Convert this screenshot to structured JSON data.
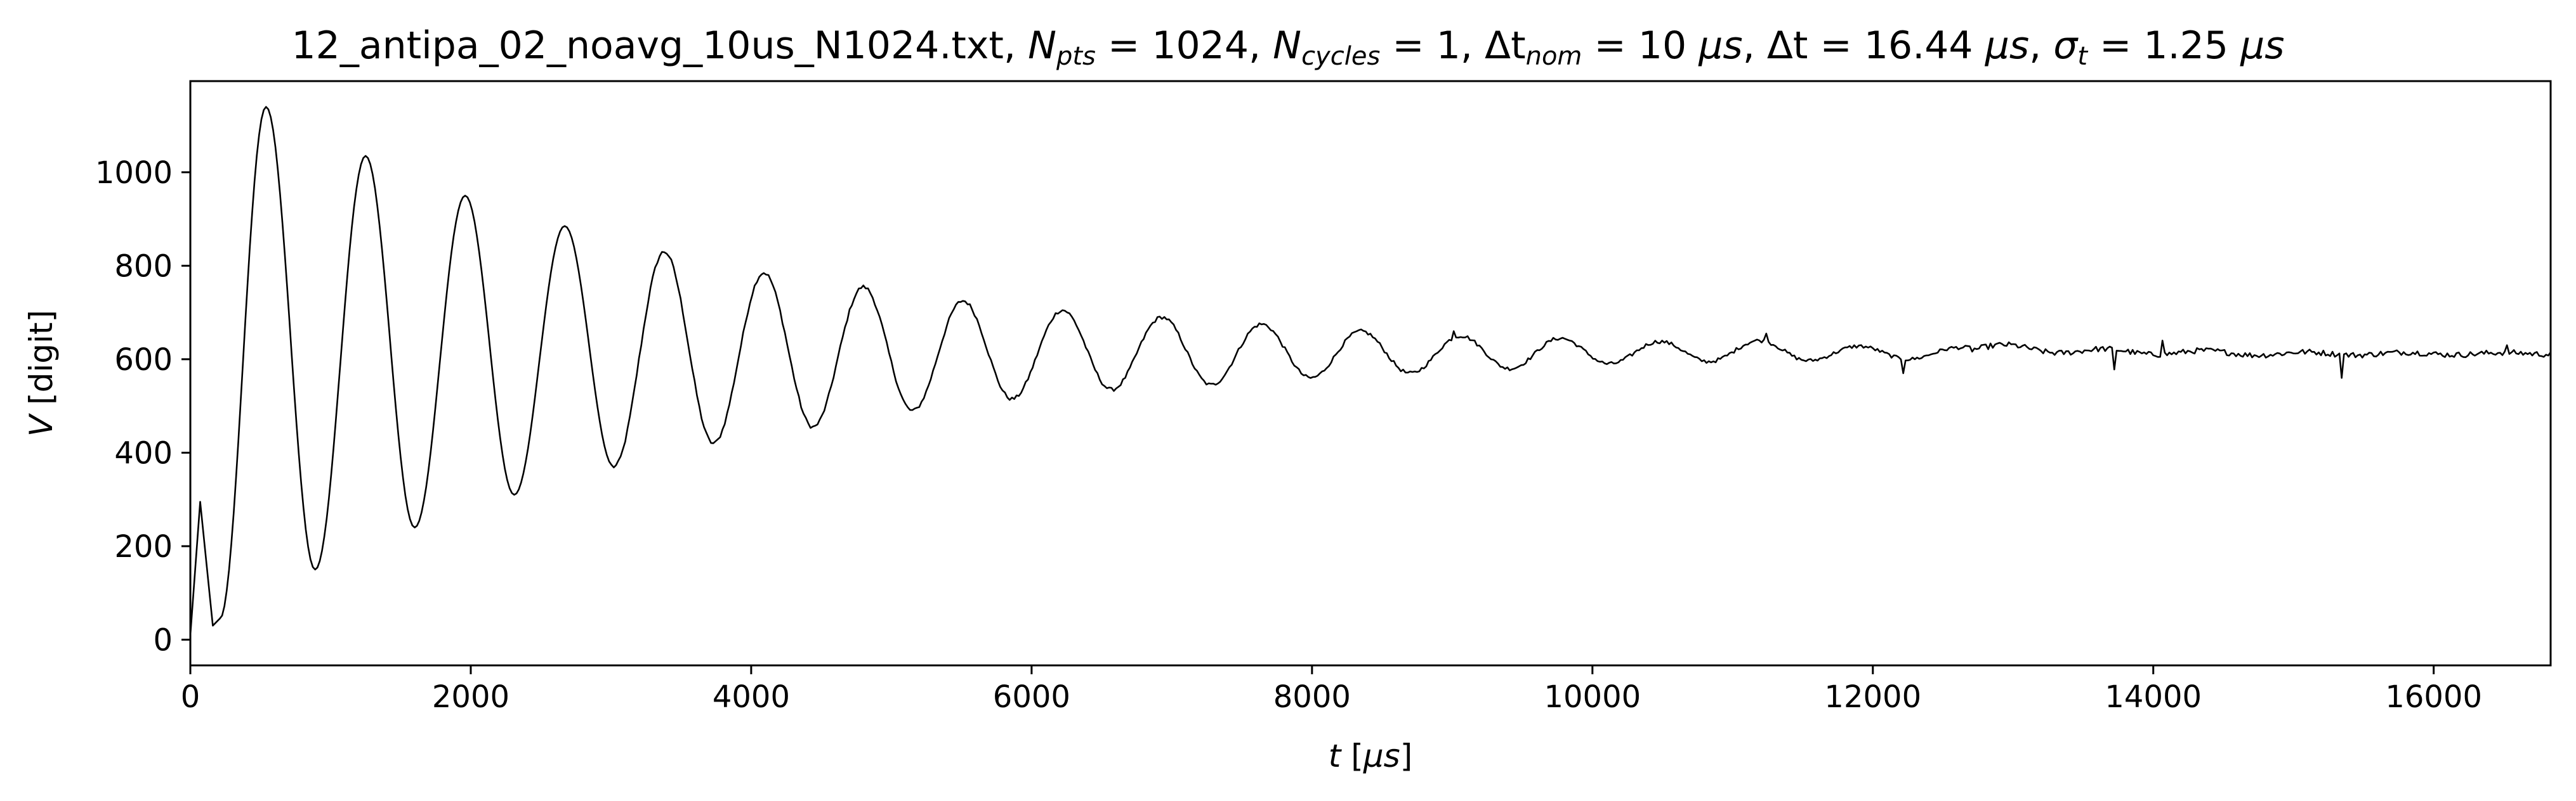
{
  "chart_data": {
    "type": "line",
    "title_parts": {
      "filename": "12_antipa_02_noavg_10us_N1024.txt, ",
      "npts_sym": "N",
      "npts_sub": "pts",
      "npts_val": " = 1024, ",
      "ncyc_sym": "N",
      "ncyc_sub": "cycles",
      "ncyc_val": " = 1, ",
      "dtnom_sym": "Δt",
      "dtnom_sub": "nom",
      "dtnom_val": " = 10 ",
      "dtnom_unit": "μs",
      "sep1": ", ",
      "dt_sym": "Δt",
      "dt_val": " = 16.44 ",
      "dt_unit": "μs",
      "sep2": ", ",
      "sig_sym": "σ",
      "sig_sub": "t",
      "sig_val": " = 1.25 ",
      "sig_unit": "μs"
    },
    "xlabel": {
      "var": "t",
      "unit_open": " [",
      "unit": "μs",
      "unit_close": "]"
    },
    "ylabel": {
      "var": "V",
      "unit": " [digit]"
    },
    "xlim": [
      0,
      16834
    ],
    "ylim": [
      -55,
      1195
    ],
    "xticks": [
      "0",
      "2000",
      "4000",
      "6000",
      "8000",
      "10000",
      "12000",
      "14000",
      "16000"
    ],
    "xtick_values": [
      0,
      2000,
      4000,
      6000,
      8000,
      10000,
      12000,
      14000,
      16000
    ],
    "yticks": [
      "0",
      "200",
      "400",
      "600",
      "800",
      "1000"
    ],
    "ytick_values": [
      0,
      200,
      400,
      600,
      800,
      1000
    ],
    "series": [
      {
        "line_color": "#000000",
        "sample_interval": 16.44,
        "n_points": 1024,
        "first_x": 0,
        "oscillation": {
          "baseline": 612,
          "period": 710,
          "first_peak_x": 540,
          "decay_time": 3500,
          "initial_transient": [
            {
              "x": 0,
              "y": 10
            },
            {
              "x": 70,
              "y": 295
            },
            {
              "x": 160,
              "y": 30
            },
            {
              "x": 210,
              "y": 45
            }
          ]
        },
        "key_points": [
          {
            "x": 540,
            "y": 1140
          },
          {
            "x": 890,
            "y": 150
          },
          {
            "x": 1250,
            "y": 1035
          },
          {
            "x": 1600,
            "y": 240
          },
          {
            "x": 1960,
            "y": 950
          },
          {
            "x": 2310,
            "y": 310
          },
          {
            "x": 2670,
            "y": 885
          },
          {
            "x": 3020,
            "y": 370
          },
          {
            "x": 3380,
            "y": 830
          },
          {
            "x": 3730,
            "y": 420
          },
          {
            "x": 4090,
            "y": 785
          },
          {
            "x": 4440,
            "y": 455
          },
          {
            "x": 4800,
            "y": 755
          },
          {
            "x": 5150,
            "y": 490
          },
          {
            "x": 5510,
            "y": 725
          },
          {
            "x": 5860,
            "y": 515
          },
          {
            "x": 6220,
            "y": 705
          },
          {
            "x": 6570,
            "y": 535
          },
          {
            "x": 6930,
            "y": 690
          },
          {
            "x": 7280,
            "y": 545
          },
          {
            "x": 7640,
            "y": 675
          },
          {
            "x": 7990,
            "y": 560
          },
          {
            "x": 8350,
            "y": 660
          },
          {
            "x": 8700,
            "y": 570
          },
          {
            "x": 9060,
            "y": 650
          },
          {
            "x": 9410,
            "y": 580
          },
          {
            "x": 9770,
            "y": 645
          },
          {
            "x": 10120,
            "y": 590
          },
          {
            "x": 10480,
            "y": 638
          },
          {
            "x": 10830,
            "y": 595
          },
          {
            "x": 11190,
            "y": 640
          },
          {
            "x": 11540,
            "y": 597
          },
          {
            "x": 11900,
            "y": 628
          },
          {
            "x": 12250,
            "y": 600
          },
          {
            "x": 12610,
            "y": 625
          },
          {
            "x": 14000,
            "y": 615
          },
          {
            "x": 15000,
            "y": 612
          },
          {
            "x": 16834,
            "y": 612
          }
        ],
        "spikes": [
          {
            "x": 9010,
            "y": 660
          },
          {
            "x": 11240,
            "y": 655
          },
          {
            "x": 12220,
            "y": 570
          },
          {
            "x": 13720,
            "y": 578
          },
          {
            "x": 14060,
            "y": 640
          },
          {
            "x": 15350,
            "y": 560
          },
          {
            "x": 16530,
            "y": 630
          }
        ]
      }
    ]
  }
}
